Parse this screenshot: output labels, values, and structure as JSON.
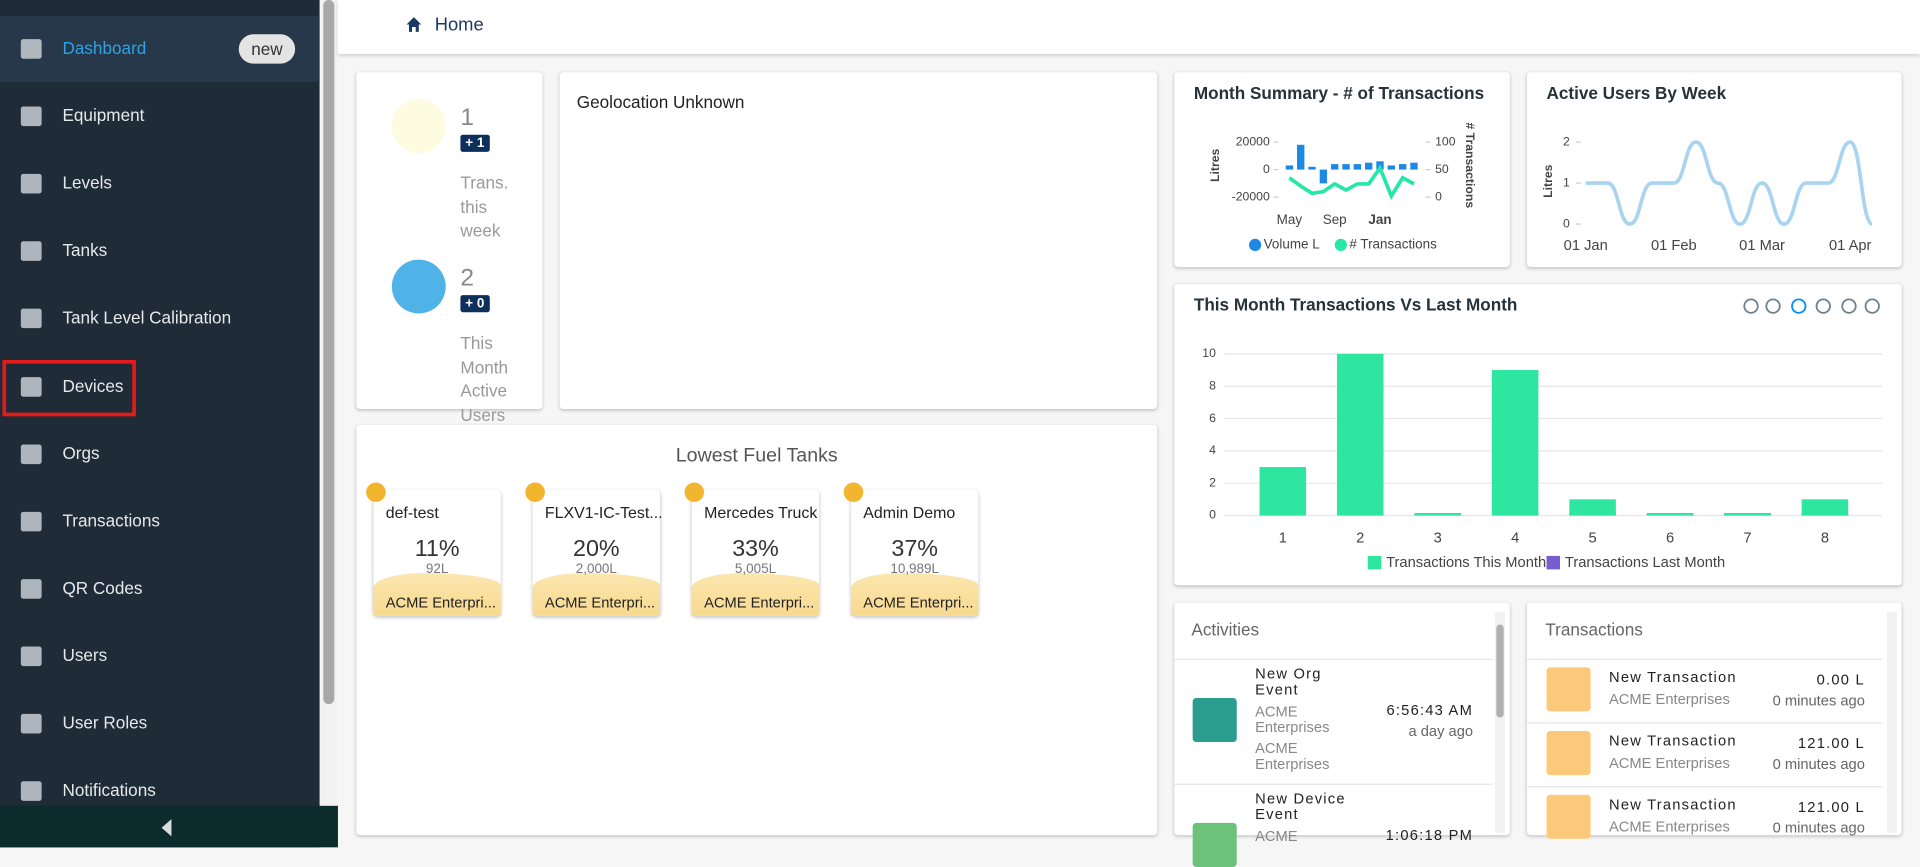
{
  "sidebar": {
    "items": [
      {
        "label": "Dashboard",
        "badge": "new"
      },
      {
        "label": "Equipment"
      },
      {
        "label": "Levels"
      },
      {
        "label": "Tanks"
      },
      {
        "label": "Tank Level Calibration"
      },
      {
        "label": "Devices"
      },
      {
        "label": "Orgs"
      },
      {
        "label": "Transactions"
      },
      {
        "label": "QR Codes"
      },
      {
        "label": "Users"
      },
      {
        "label": "User Roles"
      },
      {
        "label": "Notifications"
      }
    ]
  },
  "header": {
    "breadcrumb": "Home"
  },
  "stats": [
    {
      "value": 1,
      "delta": "+ 1",
      "label": "Trans. this week"
    },
    {
      "value": 2,
      "delta": "+ 0",
      "label": "This Month Active Users"
    }
  ],
  "geolocation": {
    "text": "Geolocation Unknown"
  },
  "lowest_fuel_tanks": {
    "title": "Lowest Fuel Tanks",
    "tanks": [
      {
        "name": "def-test",
        "level": "11%",
        "volume": "92L",
        "org": "ACME Enterpri..."
      },
      {
        "name": "FLXV1-IC-Test...",
        "level": "20%",
        "volume": "2,000L",
        "org": "ACME Enterpri..."
      },
      {
        "name": "Mercedes Truck",
        "level": "33%",
        "volume": "5,005L",
        "org": "ACME Enterpri..."
      },
      {
        "name": "Admin Demo",
        "level": "37%",
        "volume": "10,989L",
        "org": "ACME Enterpri..."
      }
    ]
  },
  "month_summary": {
    "type": "combo",
    "title": "Month Summary - # of Transactions",
    "y_label": "Litres",
    "y2_label": "# Transactions",
    "categories": [
      "May",
      null,
      null,
      null,
      "Sep",
      null,
      null,
      null,
      "Jan",
      null,
      null,
      null
    ],
    "series": [
      {
        "name": "Volume L",
        "color": "#1e88e5",
        "values": [
          3000,
          18000,
          2000,
          -10000,
          4000,
          4000,
          4000,
          5000,
          6000,
          3000,
          4000,
          5000
        ]
      },
      {
        "name": "# Transactions",
        "color": "#26e7a6",
        "axis": "y2",
        "values": [
          35,
          20,
          7,
          10,
          24,
          13,
          24,
          24,
          53,
          2,
          35,
          24
        ]
      }
    ],
    "ylim": [
      -20000,
      20000
    ],
    "yticks": [
      -20000,
      0,
      20000
    ],
    "y2lim": [
      0,
      100
    ],
    "y2ticks": [
      0,
      50,
      100
    ]
  },
  "active_users": {
    "type": "line",
    "title": "Active Users By Week",
    "y_label": "Litres",
    "categories": [
      "01 Jan",
      null,
      null,
      null,
      "01 Feb",
      null,
      null,
      null,
      "01 Mar",
      null,
      null,
      null,
      "01 Apr",
      null
    ],
    "color": "#a8d4f0",
    "values": [
      1,
      1,
      0,
      1,
      1,
      2,
      1,
      0,
      1,
      0,
      1,
      1,
      2,
      0
    ],
    "ylim": [
      0,
      2
    ],
    "yticks": [
      0,
      1,
      2
    ]
  },
  "monthly_transactions": {
    "type": "bar",
    "title": "This Month Transactions Vs Last Month",
    "categories": [
      "1",
      "2",
      "3",
      "4",
      "5",
      "6",
      "7",
      "8"
    ],
    "series": [
      {
        "name": "Transactions This Month",
        "color": "#2ee6a0",
        "values": [
          3,
          10,
          0,
          9,
          1,
          0,
          0,
          1
        ]
      },
      {
        "name": "Transactions Last Month",
        "color": "#775dd0",
        "values": [
          0,
          0,
          0,
          0,
          0,
          0,
          0,
          0
        ]
      }
    ],
    "ylim": [
      0,
      10
    ],
    "yticks": [
      0,
      2,
      4,
      6,
      8,
      10
    ],
    "grid": true
  },
  "activities": {
    "title": "Activities",
    "items": [
      {
        "title": "New Org Event",
        "org": "ACME Enterprises",
        "org2": "ACME Enterprises",
        "time": "6:56:43 AM",
        "ago": "a day ago"
      },
      {
        "title": "New Device Event",
        "org": "ACME",
        "time": "1:06:18 PM"
      }
    ]
  },
  "transactions": {
    "title": "Transactions",
    "items": [
      {
        "title": "New Transaction",
        "org": "ACME Enterprises",
        "amount": "0.00 L",
        "ago": "0 minutes ago"
      },
      {
        "title": "New Transaction",
        "org": "ACME Enterprises",
        "amount": "121.00 L",
        "ago": "0 minutes ago"
      },
      {
        "title": "New Transaction",
        "org": "ACME Enterprises",
        "amount": "121.00 L",
        "ago": "0 minutes ago"
      }
    ]
  }
}
